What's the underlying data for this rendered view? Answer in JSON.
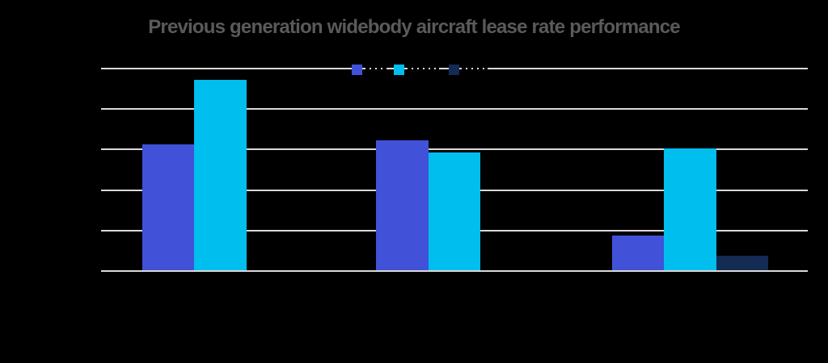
{
  "title": "Previous generation widebody aircraft lease rate performance",
  "colors": {
    "background": "#000000",
    "title_text": "#5A5A5A",
    "gridline": "#D9D9D9",
    "series_blue": "#4152D9",
    "series_cyan": "#00BEEE",
    "series_navy": "#142B54"
  },
  "legend": {
    "position": "top-center",
    "labels_visible": false,
    "items": [
      {
        "label": "",
        "color": "#4152D9"
      },
      {
        "label": "",
        "color": "#00BEEE"
      },
      {
        "label": "",
        "color": "#142B54"
      }
    ]
  },
  "chart_data": {
    "type": "bar",
    "title": "Previous generation widebody aircraft lease rate performance",
    "categories": [
      "",
      "",
      ""
    ],
    "category_labels_visible": false,
    "axis_tick_labels_visible": false,
    "series": [
      {
        "name": "",
        "color": "#4152D9",
        "values": [
          62,
          64,
          17
        ]
      },
      {
        "name": "",
        "color": "#00BEEE",
        "values": [
          94,
          58,
          60
        ]
      },
      {
        "name": "",
        "color": "#142B54",
        "values": [
          0,
          0,
          7
        ]
      }
    ],
    "ylim": [
      0,
      100
    ],
    "y_gridline_count": 6,
    "grid": true,
    "legend_position": "top-center"
  }
}
